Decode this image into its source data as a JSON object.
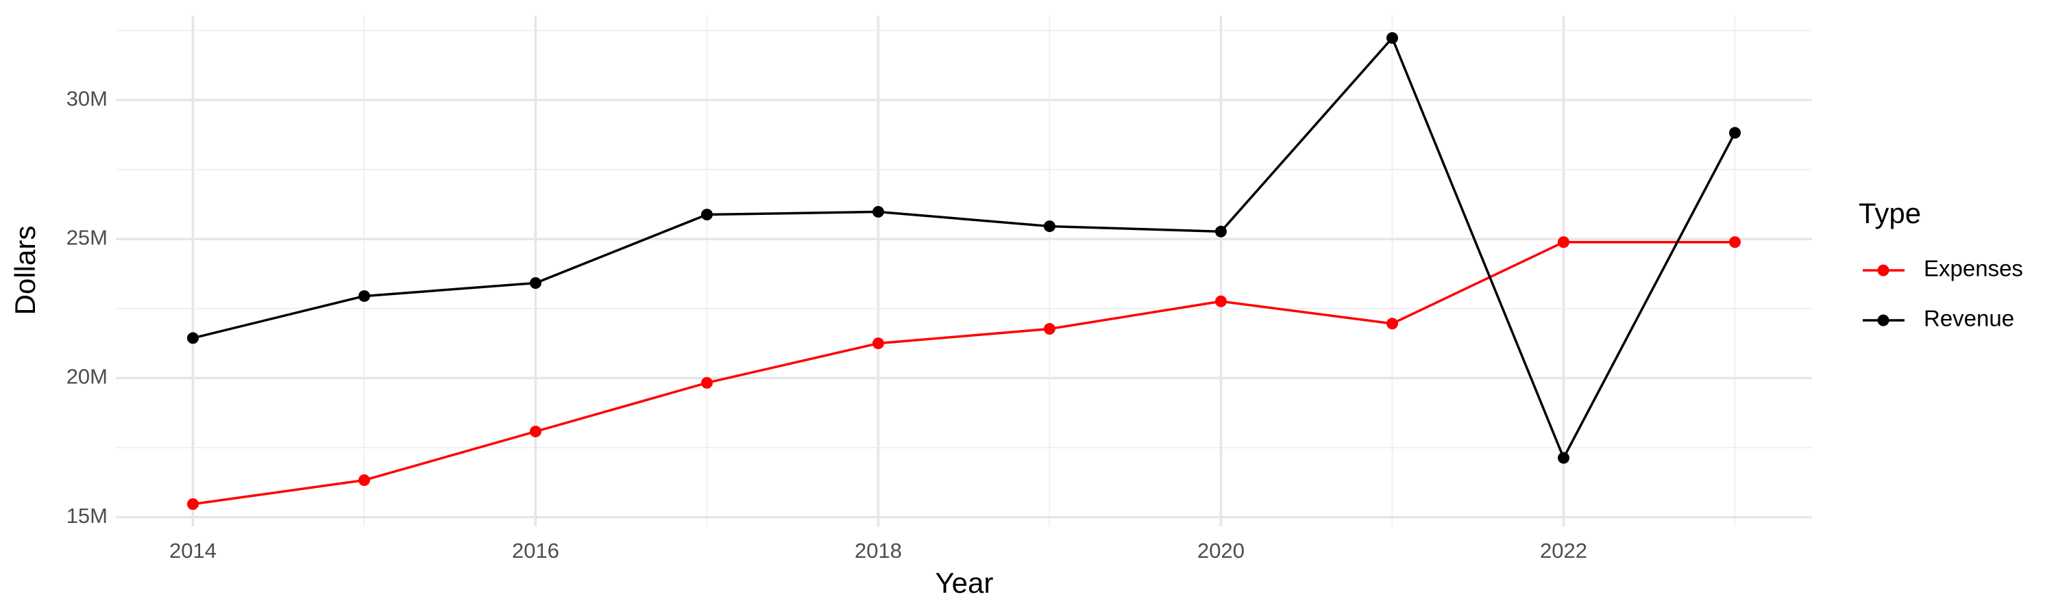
{
  "chart_data": {
    "type": "line",
    "x_label": "Year",
    "y_label": "Dollars",
    "legend_title": "Type",
    "x": [
      2014,
      2015,
      2016,
      2017,
      2018,
      2019,
      2020,
      2021,
      2022,
      2023
    ],
    "series": [
      {
        "name": "Expenses",
        "color": "#ff0000",
        "values": [
          15470000,
          16330000,
          18080000,
          19830000,
          21250000,
          21770000,
          22760000,
          21960000,
          24890000,
          24890000
        ]
      },
      {
        "name": "Revenue",
        "color": "#000000",
        "values": [
          21440000,
          22950000,
          23420000,
          25880000,
          25980000,
          25460000,
          25270000,
          32230000,
          17130000,
          28820000
        ]
      }
    ],
    "xlim": [
      2013.55,
      2023.45
    ],
    "ylim": [
      14670000,
      33030000
    ],
    "xticks": [
      2014,
      2016,
      2018,
      2020,
      2022
    ],
    "yticks": [
      {
        "value": 15000000,
        "label": "15M"
      },
      {
        "value": 20000000,
        "label": "20M"
      },
      {
        "value": 25000000,
        "label": "25M"
      },
      {
        "value": 30000000,
        "label": "30M"
      }
    ],
    "xticks_minor": [
      2015,
      2017,
      2019,
      2021,
      2023
    ],
    "yticks_minor": [
      17500000,
      22500000,
      27500000,
      32500000
    ],
    "grid": true,
    "legend_position": "right"
  }
}
